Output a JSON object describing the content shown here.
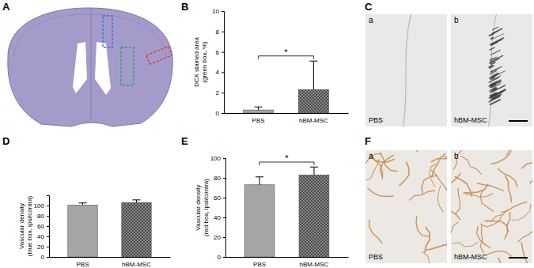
{
  "chart_data": [
    {
      "type": "bar",
      "categories": [
        "PBS",
        "hBM-MSC"
      ],
      "values": [
        0.3,
        2.3
      ],
      "errors": [
        0.3,
        2.8
      ],
      "colors": [
        "#a6a6a6",
        "#8a8a8a"
      ],
      "y_label": [
        "DCX stained area",
        "(green box, %)"
      ],
      "ylim": [
        0,
        10
      ],
      "yticks": [
        0,
        2,
        4,
        6,
        8,
        10
      ],
      "annotations": [
        "*"
      ]
    },
    {
      "type": "bar",
      "categories": [
        "PBS",
        "hBM-MSC"
      ],
      "values": [
        101,
        106
      ],
      "errors": [
        4,
        5
      ],
      "colors": [
        "#a6a6a6",
        "#8a8a8a"
      ],
      "y_label": [
        "Vascular density",
        "(blue box, ipsi/contra)"
      ],
      "ylim": [
        0,
        120
      ],
      "yticks": [
        0,
        20,
        40,
        60,
        80,
        100
      ]
    },
    {
      "type": "bar",
      "categories": [
        "PBS",
        "hBM-MSC"
      ],
      "values": [
        73,
        83
      ],
      "errors": [
        8,
        8
      ],
      "colors": [
        "#a6a6a6",
        "#8a8a8a"
      ],
      "y_label": [
        "Vascular density",
        "(red box, ipsi/contra)"
      ],
      "ylim": [
        0,
        100
      ],
      "yticks": [
        0,
        20,
        40,
        60,
        80,
        100
      ],
      "annotations": [
        "*"
      ]
    }
  ],
  "figure": {
    "panel_labels": [
      "A",
      "B",
      "C",
      "D",
      "E",
      "F"
    ],
    "image_panels": [
      {
        "captions": [
          {
            "label": "a",
            "text": "PBS"
          },
          {
            "label": "b",
            "text": "hBM-MSC"
          }
        ]
      },
      {
        "captions": [
          {
            "label": "a",
            "text": "PBS"
          },
          {
            "label": "b",
            "text": "hBM-MSC"
          }
        ]
      }
    ]
  }
}
